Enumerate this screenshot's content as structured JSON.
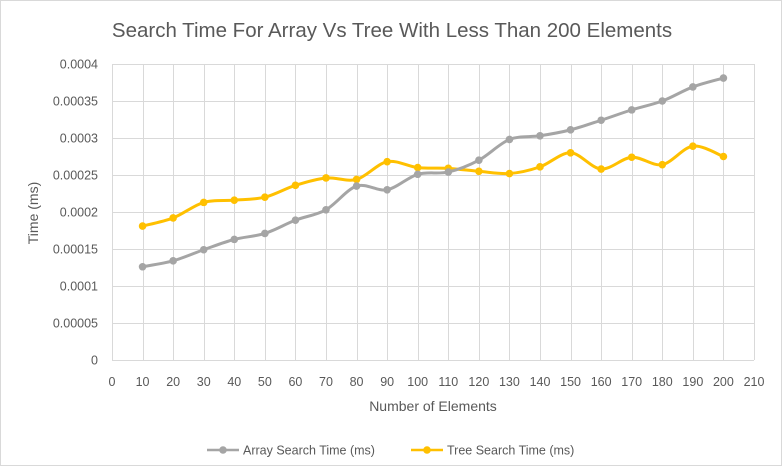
{
  "chart_data": {
    "type": "scatter",
    "title": "Search Time For Array Vs Tree With Less Than 200 Elements",
    "xlabel": "Number of Elements",
    "ylabel": "Time (ms)",
    "xlim": [
      0,
      210
    ],
    "ylim": [
      0,
      0.0004
    ],
    "x_ticks": [
      0,
      10,
      20,
      30,
      40,
      50,
      60,
      70,
      80,
      90,
      100,
      110,
      120,
      130,
      140,
      150,
      160,
      170,
      180,
      190,
      200,
      210
    ],
    "x_tick_labels": [
      "0",
      "10",
      "20",
      "30",
      "40",
      "50",
      "60",
      "70",
      "80",
      "90",
      "100",
      "110",
      "120",
      "130",
      "140",
      "150",
      "160",
      "170",
      "180",
      "190",
      "200",
      "210"
    ],
    "y_ticks": [
      0,
      5e-05,
      0.0001,
      0.00015,
      0.0002,
      0.00025,
      0.0003,
      0.00035,
      0.0004
    ],
    "y_tick_labels": [
      "0",
      "0.00005",
      "0.0001",
      "0.00015",
      "0.0002",
      "0.00025",
      "0.0003",
      "0.00035",
      "0.0004"
    ],
    "grid": true,
    "legend_position": "bottom",
    "x": [
      10,
      20,
      30,
      40,
      50,
      60,
      70,
      80,
      90,
      100,
      110,
      120,
      130,
      140,
      150,
      160,
      170,
      180,
      190,
      200
    ],
    "series": [
      {
        "name": "Array Search Time (ms)",
        "color": "#a5a5a5",
        "values": [
          0.000126,
          0.000134,
          0.000149,
          0.000163,
          0.000171,
          0.000189,
          0.000203,
          0.000235,
          0.00023,
          0.000251,
          0.000254,
          0.00027,
          0.000298,
          0.000303,
          0.000311,
          0.000324,
          0.000338,
          0.00035,
          0.000369,
          0.000381
        ]
      },
      {
        "name": "Tree Search Time (ms)",
        "color": "#ffc000",
        "values": [
          0.000181,
          0.000192,
          0.000213,
          0.000216,
          0.00022,
          0.000236,
          0.000246,
          0.000244,
          0.000268,
          0.00026,
          0.000259,
          0.000255,
          0.000252,
          0.000261,
          0.00028,
          0.000258,
          0.000274,
          0.000264,
          0.000289,
          0.000275
        ]
      }
    ]
  },
  "colors": {
    "gridline": "#d9d9d9",
    "axis_text": "#595959",
    "title_text": "#595959"
  }
}
